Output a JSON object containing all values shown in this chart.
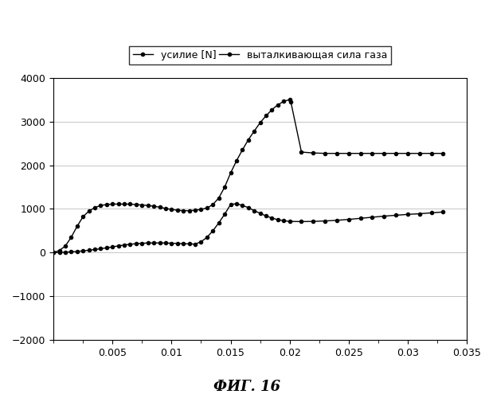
{
  "title": "",
  "xlabel": "",
  "ylabel": "",
  "xlim": [
    0,
    0.035
  ],
  "ylim": [
    -2000,
    4000
  ],
  "xticks": [
    0.005,
    0.01,
    0.015,
    0.02,
    0.025,
    0.03,
    0.035
  ],
  "yticks": [
    -2000,
    -1000,
    0,
    1000,
    2000,
    3000,
    4000
  ],
  "caption": "ФИГ. 16",
  "legend_labels": [
    "усилие [N]",
    "выталкивающая сила газа"
  ],
  "line_color": "#000000",
  "marker_size": 3,
  "background_color": "#ffffff",
  "curve1_x": [
    0.0,
    0.0005,
    0.001,
    0.0015,
    0.002,
    0.0025,
    0.003,
    0.0035,
    0.004,
    0.0045,
    0.005,
    0.0055,
    0.006,
    0.0065,
    0.007,
    0.0075,
    0.008,
    0.0085,
    0.009,
    0.0095,
    0.01,
    0.0105,
    0.011,
    0.0115,
    0.012,
    0.0125,
    0.013,
    0.0135,
    0.014,
    0.0145,
    0.015,
    0.0155,
    0.016,
    0.0165,
    0.017,
    0.0175,
    0.018,
    0.0185,
    0.019,
    0.0195,
    0.02,
    0.0201,
    0.021,
    0.022,
    0.023,
    0.024,
    0.025,
    0.026,
    0.027,
    0.028,
    0.029,
    0.03,
    0.031,
    0.032,
    0.033
  ],
  "curve1_y": [
    0,
    50,
    150,
    350,
    600,
    820,
    950,
    1030,
    1080,
    1100,
    1110,
    1110,
    1110,
    1110,
    1100,
    1090,
    1080,
    1060,
    1040,
    1010,
    990,
    970,
    960,
    960,
    970,
    990,
    1020,
    1100,
    1250,
    1500,
    1820,
    2100,
    2350,
    2580,
    2780,
    2970,
    3130,
    3270,
    3380,
    3460,
    3500,
    3450,
    2300,
    2280,
    2270,
    2270,
    2270,
    2270,
    2270,
    2270,
    2270,
    2270,
    2270,
    2270,
    2270
  ],
  "curve2_x": [
    0.0,
    0.0005,
    0.001,
    0.0015,
    0.002,
    0.0025,
    0.003,
    0.0035,
    0.004,
    0.0045,
    0.005,
    0.0055,
    0.006,
    0.0065,
    0.007,
    0.0075,
    0.008,
    0.0085,
    0.009,
    0.0095,
    0.01,
    0.0105,
    0.011,
    0.0115,
    0.012,
    0.0125,
    0.013,
    0.0135,
    0.014,
    0.0145,
    0.015,
    0.0155,
    0.016,
    0.0165,
    0.017,
    0.0175,
    0.018,
    0.0185,
    0.019,
    0.0195,
    0.02,
    0.021,
    0.022,
    0.023,
    0.024,
    0.025,
    0.026,
    0.027,
    0.028,
    0.029,
    0.03,
    0.031,
    0.032,
    0.033
  ],
  "curve2_y": [
    0,
    5,
    10,
    18,
    28,
    40,
    55,
    72,
    90,
    110,
    132,
    155,
    175,
    192,
    205,
    215,
    220,
    222,
    222,
    220,
    216,
    210,
    205,
    200,
    196,
    250,
    350,
    500,
    680,
    880,
    1100,
    1120,
    1080,
    1030,
    960,
    900,
    840,
    790,
    755,
    730,
    715,
    710,
    715,
    725,
    740,
    760,
    785,
    810,
    835,
    855,
    875,
    890,
    910,
    930
  ]
}
